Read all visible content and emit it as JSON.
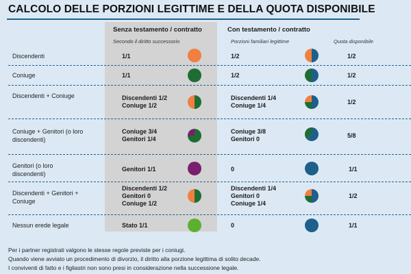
{
  "title": "CALCOLO DELLE PORZIONI LEGITTIME E DELLA QUOTA DISPONIBILE",
  "columns": {
    "without_will": "Senza testamento / contratto",
    "with_will": "Con testamento / contratto",
    "without_will_sub": "Secondo il diritto successorio",
    "family_portion_sub": "Porzioni familiari legittime",
    "available_sub": "Quota disponibile"
  },
  "colors": {
    "descendants": "#f08040",
    "spouse": "#1e6e33",
    "parents": "#7a1f6e",
    "state": "#5cb030",
    "available": "#1f5f8b"
  },
  "rows": [
    {
      "label": "Discendenti",
      "intestate": [
        "1/1"
      ],
      "legitimate": [
        "1/2"
      ],
      "available": "1/2"
    },
    {
      "label": "Coniuge",
      "intestate": [
        "1/1"
      ],
      "legitimate": [
        "1/2"
      ],
      "available": "1/2"
    },
    {
      "label": "Discendenti + Coniuge",
      "intestate": [
        "Discendenti 1/2",
        "Coniuge 1/2"
      ],
      "legitimate": [
        "Discendenti 1/4",
        "Coniuge 1/4"
      ],
      "available": "1/2"
    },
    {
      "label": "Coniuge + Genitori (o loro discendenti)",
      "intestate": [
        "Coniuge 3/4",
        "Genitori 1/4"
      ],
      "legitimate": [
        "Coniuge 3/8",
        "Genitori 0"
      ],
      "available": "5/8"
    },
    {
      "label": "Genitori (o loro discendenti)",
      "intestate": [
        "Genitori 1/1"
      ],
      "legitimate": [
        "0"
      ],
      "available": "1/1"
    },
    {
      "label": "Discendenti + Genitori + Coniuge",
      "intestate": [
        "Discendenti 1/2",
        "Genitori 0",
        "Coniuge 1/2"
      ],
      "legitimate": [
        "Discendenti 1/4",
        "Genitori 0",
        "Coniuge 1/4"
      ],
      "available": "1/2"
    },
    {
      "label": "Nessun erede legale",
      "intestate": [
        "Stato 1/1"
      ],
      "legitimate": [
        "0"
      ],
      "available": "1/1"
    }
  ],
  "notes": [
    "Per i partner registrati valgono le stesse regole previste per i coniugi.",
    "Quando viene avviato un procedimento di divorzio, il diritto alla porzione legittima di solito decade.",
    "I conviventi di fatto e i figliastri non sono presi in considerazione nella successione legale."
  ]
}
